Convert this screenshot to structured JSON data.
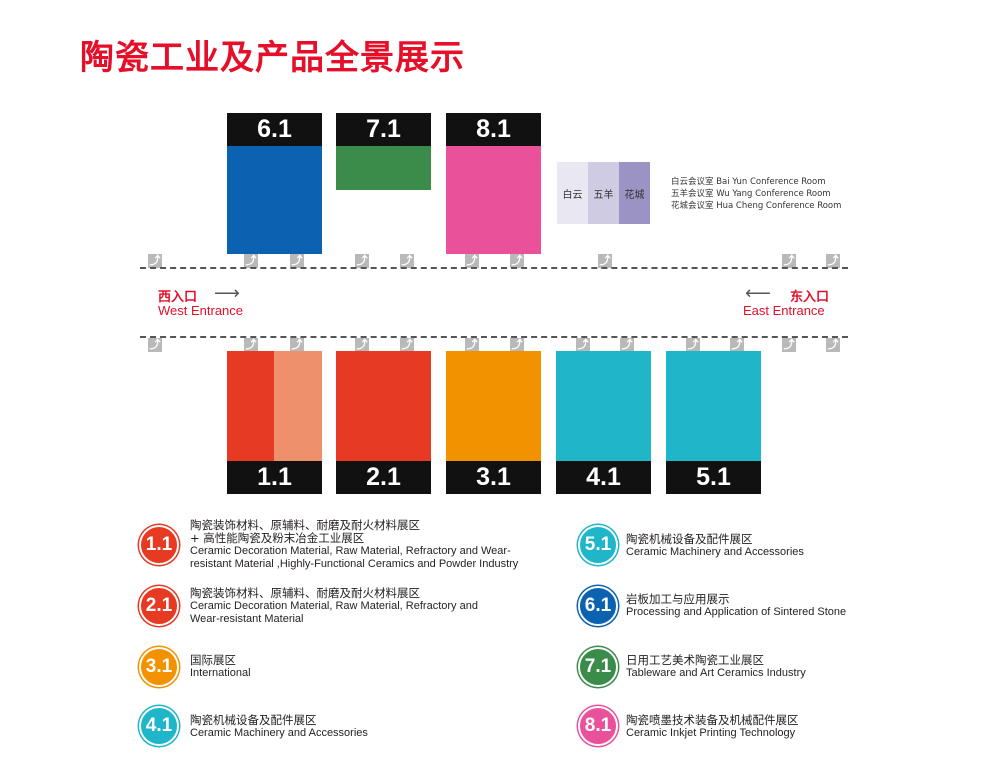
{
  "title": "陶瓷工业及产品全景展示",
  "halls_top": [
    {
      "label": "6.1",
      "color": "#0a62b0"
    },
    {
      "label": "7.1",
      "color": "#3b8b4b"
    },
    {
      "label": "8.1",
      "color": "#e9519a"
    }
  ],
  "halls_bottom": [
    {
      "label": "1.1",
      "color": "#e63a22",
      "color2": "#ef906d"
    },
    {
      "label": "2.1",
      "color": "#e63a22"
    },
    {
      "label": "3.1",
      "color": "#f39200"
    },
    {
      "label": "4.1",
      "color": "#1fb6c9"
    },
    {
      "label": "5.1",
      "color": "#1fb6c9"
    }
  ],
  "rooms": [
    {
      "label": "白云",
      "color": "#e8e7f2"
    },
    {
      "label": "五羊",
      "color": "#cfcbe3"
    },
    {
      "label": "花城",
      "color": "#9b93c4"
    }
  ],
  "room_notes": [
    "白云会议室 Bai Yun Conference Room",
    "五羊会议室 Wu Yang Conference Room",
    "花城会议室 Hua Cheng Conference Room"
  ],
  "entrances": {
    "west_cn": "西入口",
    "west_en": "West Entrance",
    "east_cn": "东入口",
    "east_en": "East Entrance"
  },
  "legend": [
    {
      "id": "1.1",
      "color": "#e63a22",
      "lines": [
        "陶瓷装饰材料、原辅料、耐磨及耐火材料展区",
        "+ 高性能陶瓷及粉末冶金工业展区",
        "Ceramic Decoration Material, Raw Material, Refractory and Wear-",
        "resistant Material ,Highly-Functional Ceramics and Powder Industry"
      ]
    },
    {
      "id": "2.1",
      "color": "#e63a22",
      "lines": [
        "陶瓷装饰材料、原辅料、耐磨及耐火材料展区",
        "Ceramic Decoration Material, Raw Material, Refractory and",
        "Wear-resistant Material"
      ]
    },
    {
      "id": "3.1",
      "color": "#f39200",
      "lines": [
        "国际展区",
        "International"
      ]
    },
    {
      "id": "4.1",
      "color": "#1fb6c9",
      "lines": [
        "陶瓷机械设备及配件展区",
        "Ceramic Machinery and Accessories"
      ]
    },
    {
      "id": "5.1",
      "color": "#1fb6c9",
      "lines": [
        "陶瓷机械设备及配件展区",
        "Ceramic Machinery and Accessories"
      ]
    },
    {
      "id": "6.1",
      "color": "#0a62b0",
      "lines": [
        "岩板加工与应用展示",
        "Processing and Application of Sintered Stone"
      ]
    },
    {
      "id": "7.1",
      "color": "#3b8b4b",
      "lines": [
        "日用工艺美术陶瓷工业展区",
        "Tableware and Art Ceramics Industry"
      ]
    },
    {
      "id": "8.1",
      "color": "#e9519a",
      "lines": [
        "陶瓷喷墨技术装备及机械配件展区",
        "Ceramic Inkjet Printing Technology"
      ]
    }
  ]
}
